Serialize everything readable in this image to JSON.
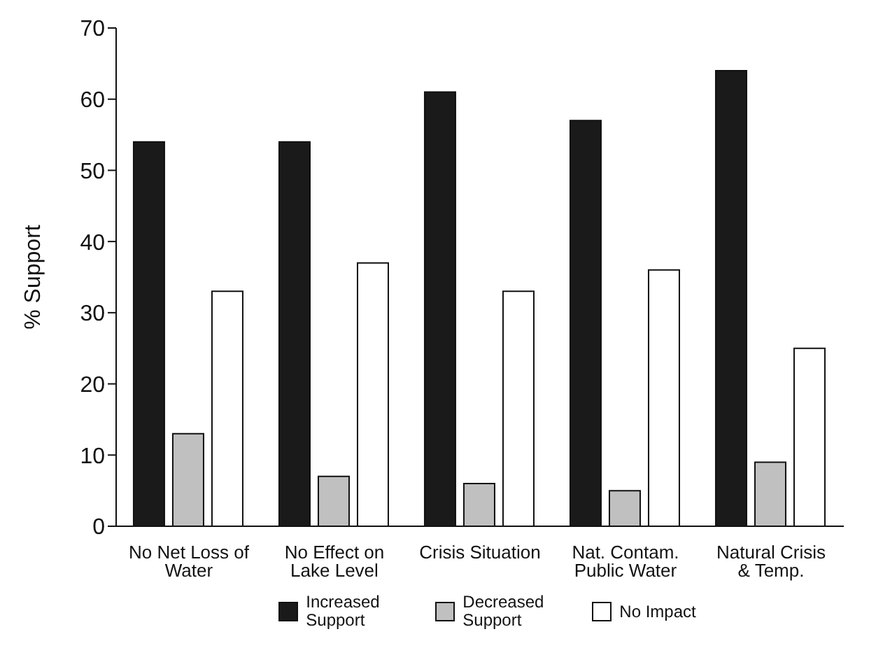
{
  "chart_data": {
    "type": "bar",
    "ylabel": "% Support",
    "categories": [
      "No Net Loss of Water",
      "No Effect on Lake Level",
      "Crisis Situation",
      "Nat. Contam. Public Water",
      "Natural Crisis & Temp."
    ],
    "series": [
      {
        "name": "Increased Support",
        "color": "#1a1a1a",
        "values": [
          54,
          54,
          61,
          57,
          64
        ]
      },
      {
        "name": "Decreased Support",
        "color": "#c0c0c0",
        "values": [
          13,
          7,
          6,
          5,
          9
        ]
      },
      {
        "name": "No Impact",
        "color": "#ffffff",
        "values": [
          33,
          37,
          33,
          36,
          25
        ]
      }
    ],
    "ylim": [
      0,
      70
    ],
    "yticks": [
      0,
      10,
      20,
      30,
      40,
      50,
      60,
      70
    ],
    "grid": false,
    "legend": "bottom"
  }
}
